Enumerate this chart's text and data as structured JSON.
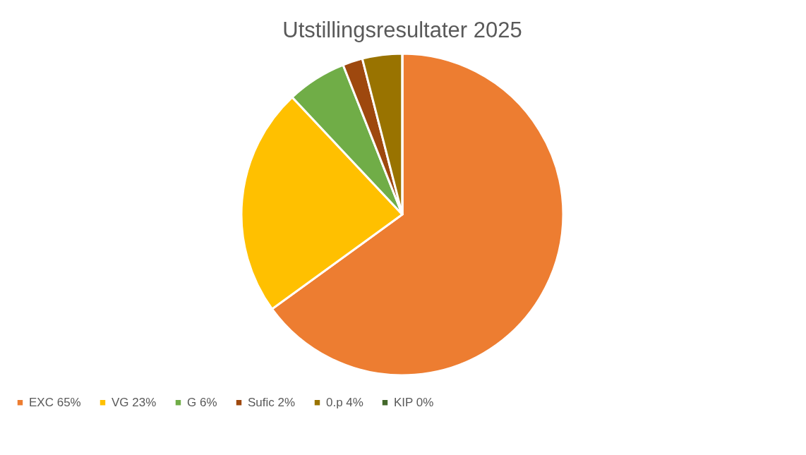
{
  "chart_data": {
    "type": "pie",
    "title": "Utstillingsresultater 2025",
    "categories": [
      "EXC 65%",
      "VG 23%",
      "G 6%",
      "Sufic 2%",
      "0.p 4%",
      "KIP 0%"
    ],
    "values": [
      65,
      23,
      6,
      2,
      4,
      0
    ],
    "colors": [
      "#ed7d31",
      "#ffc000",
      "#70ad47",
      "#9e480e",
      "#997300",
      "#43682b"
    ],
    "legend": "bottom"
  }
}
